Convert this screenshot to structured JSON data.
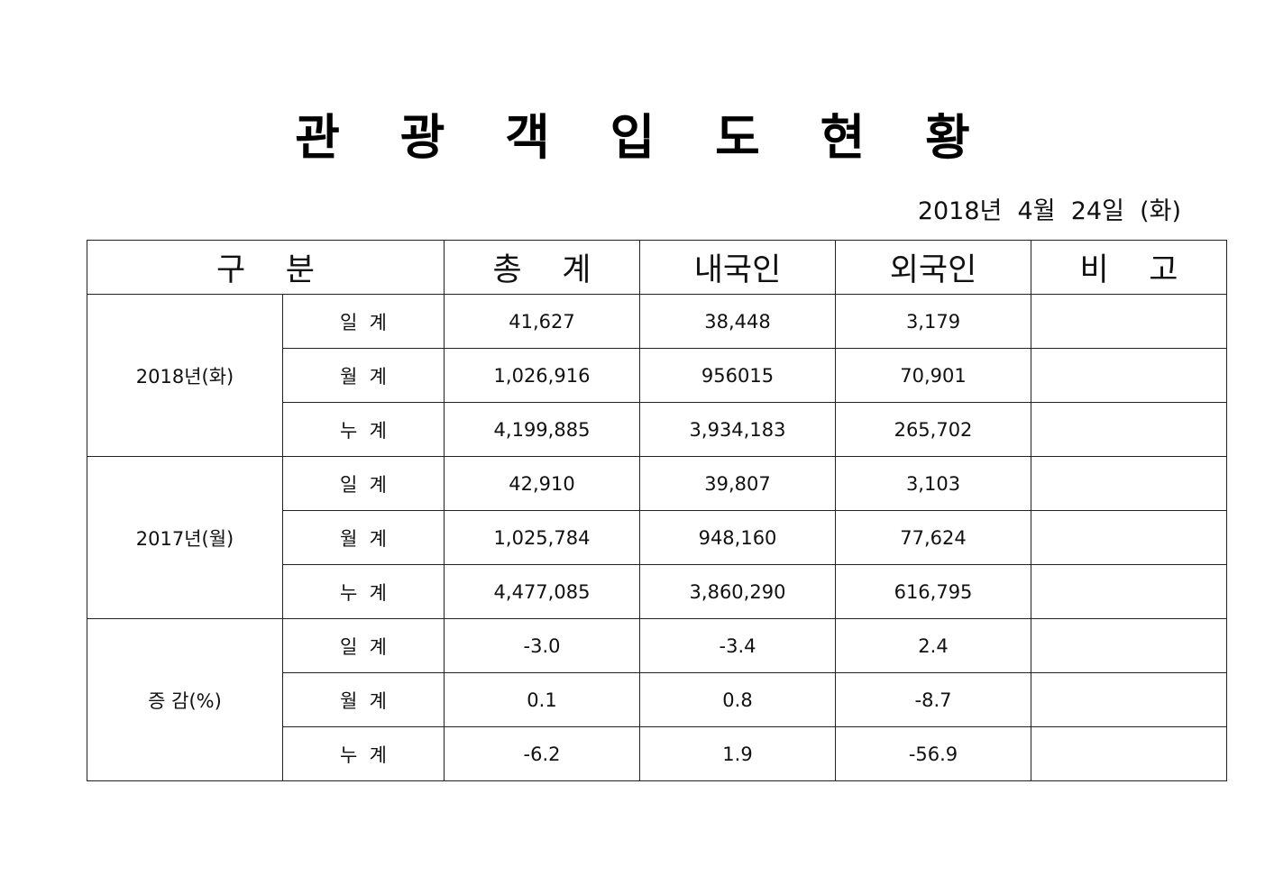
{
  "document": {
    "title": "관 광 객 입 도 현 황",
    "date": "2018년  4월  24일  (화)"
  },
  "table": {
    "headers": {
      "category": "구    분",
      "total": "총    계",
      "domestic": "내국인",
      "foreign": "외국인",
      "remarks": "비    고"
    },
    "groups": [
      {
        "label": "2018년(화)",
        "rows": [
          {
            "sub": "일  계",
            "total": "41,627",
            "domestic": "38,448",
            "foreign": "3,179",
            "remarks": ""
          },
          {
            "sub": "월  계",
            "total": "1,026,916",
            "domestic": "956015",
            "foreign": "70,901",
            "remarks": ""
          },
          {
            "sub": "누  계",
            "total": "4,199,885",
            "domestic": "3,934,183",
            "foreign": "265,702",
            "remarks": ""
          }
        ]
      },
      {
        "label": "2017년(월)",
        "rows": [
          {
            "sub": "일  계",
            "total": "42,910",
            "domestic": "39,807",
            "foreign": "3,103",
            "remarks": ""
          },
          {
            "sub": "월  계",
            "total": "1,025,784",
            "domestic": "948,160",
            "foreign": "77,624",
            "remarks": ""
          },
          {
            "sub": "누  계",
            "total": "4,477,085",
            "domestic": "3,860,290",
            "foreign": "616,795",
            "remarks": ""
          }
        ]
      },
      {
        "label": "증 감(%)",
        "rows": [
          {
            "sub": "일  계",
            "total": "-3.0",
            "domestic": "-3.4",
            "foreign": "2.4",
            "remarks": ""
          },
          {
            "sub": "월  계",
            "total": "0.1",
            "domestic": "0.8",
            "foreign": "-8.7",
            "remarks": ""
          },
          {
            "sub": "누  계",
            "total": "-6.2",
            "domestic": "1.9",
            "foreign": "-56.9",
            "remarks": ""
          }
        ]
      }
    ]
  }
}
